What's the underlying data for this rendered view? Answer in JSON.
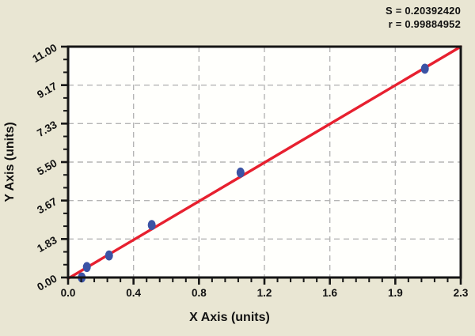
{
  "stats_box": {
    "line1": "S = 0.20392420",
    "line2": "r = 0.99884952"
  },
  "chart_data": {
    "type": "scatter",
    "title": "",
    "xlabel": "X Axis (units)",
    "ylabel": "Y Axis (units)",
    "xlim": [
      0,
      2.3
    ],
    "ylim": [
      0,
      11
    ],
    "x_tick_labels": [
      "0.0",
      "0.4",
      "0.8",
      "1.2",
      "1.6",
      "1.9",
      "2.3"
    ],
    "y_tick_labels": [
      "0.00",
      "1.83",
      "3.67",
      "5.50",
      "7.33",
      "9.17",
      "11.00"
    ],
    "x_minor_per_major": 5,
    "y_minor_per_major": 3,
    "grid": true,
    "legend": "none",
    "points": [
      {
        "x": 0.08,
        "y": 0.0
      },
      {
        "x": 0.11,
        "y": 0.5
      },
      {
        "x": 0.24,
        "y": 1.05
      },
      {
        "x": 0.49,
        "y": 2.5
      },
      {
        "x": 1.01,
        "y": 5.0
      },
      {
        "x": 2.09,
        "y": 9.95
      }
    ],
    "fit_line": {
      "x1": 0.0,
      "y1": -0.05,
      "x2": 2.3,
      "y2": 11.0
    },
    "stats": {
      "S": "0.20392420",
      "r": "0.99884952"
    },
    "colors": {
      "background": "#e9e6d3",
      "plot_bg": "#fffffc",
      "line": "#e7202f",
      "point": "#3b53a5",
      "grid": "#b5b5b5",
      "axis": "#161616",
      "text": "#111111"
    }
  }
}
